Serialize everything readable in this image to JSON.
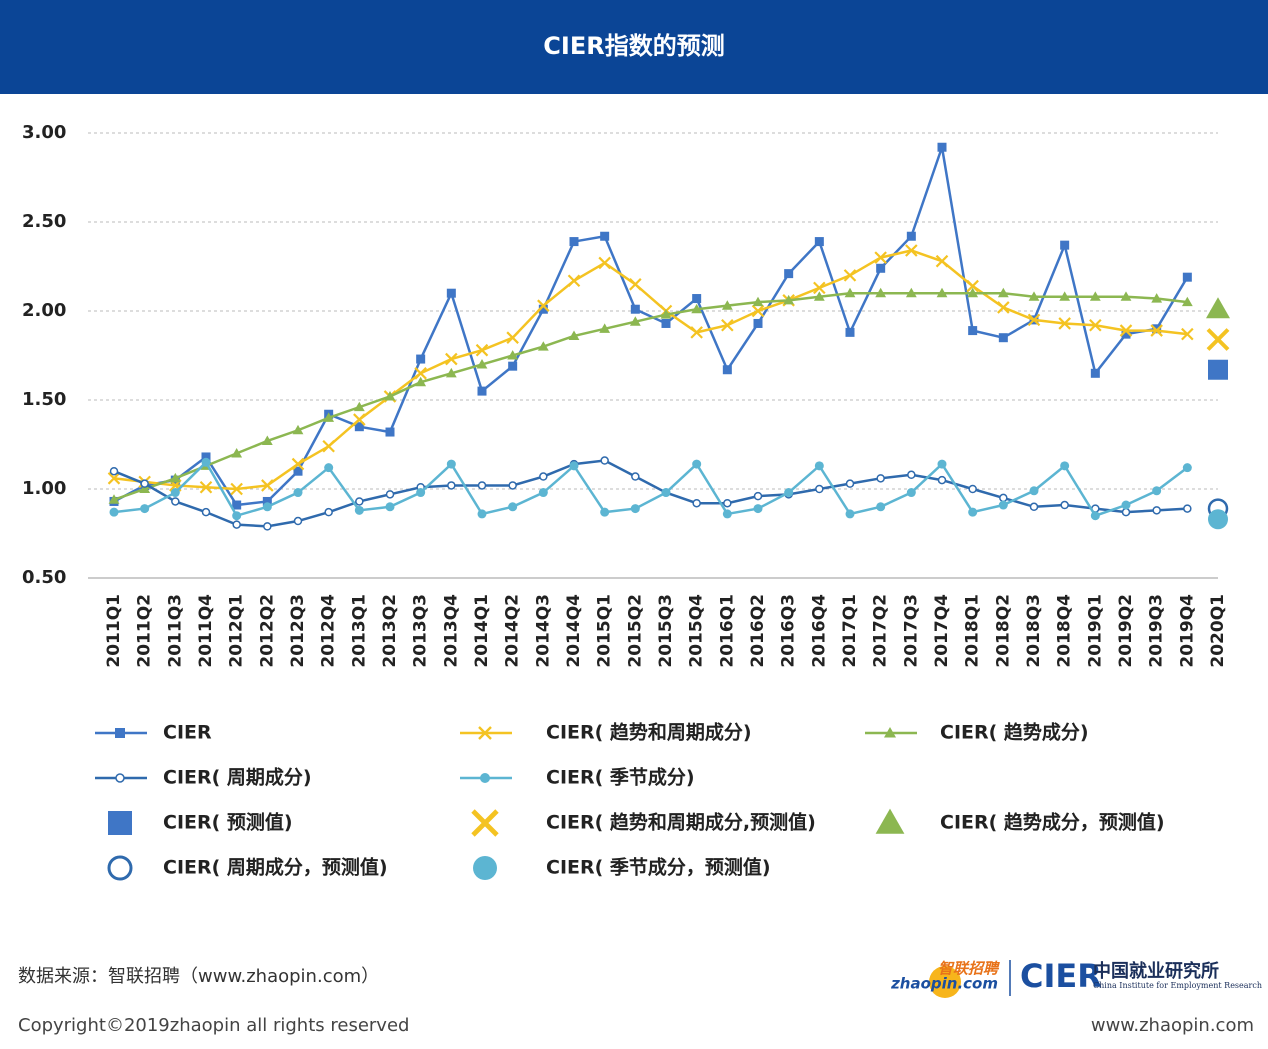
{
  "chart_data": {
    "type": "line",
    "title": "CIER指数的预测",
    "categories": [
      "2011Q1",
      "2011Q2",
      "2011Q3",
      "2011Q4",
      "2012Q1",
      "2012Q2",
      "2012Q3",
      "2012Q4",
      "2013Q1",
      "2013Q2",
      "2013Q3",
      "2013Q4",
      "2014Q1",
      "2014Q2",
      "2014Q3",
      "2014Q4",
      "2015Q1",
      "2015Q2",
      "2015Q3",
      "2015Q4",
      "2016Q1",
      "2016Q2",
      "2016Q3",
      "2016Q4",
      "2017Q1",
      "2017Q2",
      "2017Q3",
      "2017Q4",
      "2018Q1",
      "2018Q2",
      "2018Q3",
      "2018Q4",
      "2019Q1",
      "2019Q2",
      "2019Q3",
      "2019Q4",
      "2020Q1"
    ],
    "ylim": [
      0.5,
      3.0
    ],
    "yticks": [
      {
        "value": 0.5,
        "label": "0.50"
      },
      {
        "value": 1,
        "label": "1.00"
      },
      {
        "value": 1.5,
        "label": "1.50"
      },
      {
        "value": 2,
        "label": "2.00"
      },
      {
        "value": 2.5,
        "label": "2.50"
      },
      {
        "value": 3,
        "label": "3.00"
      }
    ],
    "grid": true,
    "series": [
      {
        "name": "CIER",
        "color": "#3f76c6",
        "marker": "square",
        "line": true,
        "values": [
          0.93,
          1.02,
          1.05,
          1.18,
          0.91,
          0.93,
          1.1,
          1.42,
          1.35,
          1.32,
          1.73,
          2.1,
          1.55,
          1.69,
          2.01,
          2.39,
          2.42,
          2.01,
          1.93,
          2.07,
          1.67,
          1.93,
          2.21,
          2.39,
          1.88,
          2.24,
          2.42,
          2.92,
          1.89,
          1.85,
          1.95,
          2.37,
          1.65,
          1.87,
          1.9,
          2.19,
          null
        ]
      },
      {
        "name": "CIER( 趋势和周期成分)",
        "color": "#f4c322",
        "marker": "x",
        "line": true,
        "values": [
          1.06,
          1.04,
          1.02,
          1.01,
          1.0,
          1.02,
          1.14,
          1.24,
          1.39,
          1.52,
          1.65,
          1.73,
          1.78,
          1.85,
          2.03,
          2.17,
          2.27,
          2.15,
          2.0,
          1.88,
          1.92,
          2.0,
          2.06,
          2.13,
          2.2,
          2.3,
          2.34,
          2.28,
          2.14,
          2.02,
          1.95,
          1.93,
          1.92,
          1.89,
          1.89,
          1.87,
          null
        ]
      },
      {
        "name": "CIER( 趋势成分)",
        "color": "#8cb751",
        "marker": "triangle",
        "line": true,
        "values": [
          0.94,
          1.0,
          1.06,
          1.13,
          1.2,
          1.27,
          1.33,
          1.4,
          1.46,
          1.52,
          1.6,
          1.65,
          1.7,
          1.75,
          1.8,
          1.86,
          1.9,
          1.94,
          1.98,
          2.01,
          2.03,
          2.05,
          2.06,
          2.08,
          2.1,
          2.1,
          2.1,
          2.1,
          2.1,
          2.1,
          2.08,
          2.08,
          2.08,
          2.08,
          2.07,
          2.05,
          null
        ]
      },
      {
        "name": "CIER( 周期成分)",
        "color": "#2f6aad",
        "marker": "circle-open",
        "line": true,
        "values": [
          1.1,
          1.03,
          0.93,
          0.87,
          0.8,
          0.79,
          0.82,
          0.87,
          0.93,
          0.97,
          1.01,
          1.02,
          1.02,
          1.02,
          1.07,
          1.14,
          1.16,
          1.07,
          0.98,
          0.92,
          0.92,
          0.96,
          0.97,
          1.0,
          1.03,
          1.06,
          1.08,
          1.05,
          1.0,
          0.95,
          0.9,
          0.91,
          0.89,
          0.87,
          0.88,
          0.89,
          null
        ]
      },
      {
        "name": "CIER( 季节成分)",
        "color": "#5cb5d2",
        "marker": "circle",
        "line": true,
        "values": [
          0.87,
          0.89,
          0.98,
          1.15,
          0.85,
          0.9,
          0.98,
          1.12,
          0.88,
          0.9,
          0.98,
          1.14,
          0.86,
          0.9,
          0.98,
          1.13,
          0.87,
          0.89,
          0.98,
          1.14,
          0.86,
          0.89,
          0.98,
          1.13,
          0.86,
          0.9,
          0.98,
          1.14,
          0.87,
          0.91,
          0.99,
          1.13,
          0.85,
          0.91,
          0.99,
          1.12,
          null
        ]
      },
      {
        "name": "CIER( 预测值)",
        "color": "#3f76c6",
        "marker": "square",
        "line": false,
        "values": [
          null,
          null,
          null,
          null,
          null,
          null,
          null,
          null,
          null,
          null,
          null,
          null,
          null,
          null,
          null,
          null,
          null,
          null,
          null,
          null,
          null,
          null,
          null,
          null,
          null,
          null,
          null,
          null,
          null,
          null,
          null,
          null,
          null,
          null,
          null,
          null,
          1.67
        ]
      },
      {
        "name": "CIER( 趋势和周期成分,预测值)",
        "color": "#f4c322",
        "marker": "x",
        "line": false,
        "values": [
          null,
          null,
          null,
          null,
          null,
          null,
          null,
          null,
          null,
          null,
          null,
          null,
          null,
          null,
          null,
          null,
          null,
          null,
          null,
          null,
          null,
          null,
          null,
          null,
          null,
          null,
          null,
          null,
          null,
          null,
          null,
          null,
          null,
          null,
          null,
          null,
          1.84
        ]
      },
      {
        "name": "CIER( 趋势成分，预测值)",
        "color": "#8cb751",
        "marker": "triangle",
        "line": false,
        "values": [
          null,
          null,
          null,
          null,
          null,
          null,
          null,
          null,
          null,
          null,
          null,
          null,
          null,
          null,
          null,
          null,
          null,
          null,
          null,
          null,
          null,
          null,
          null,
          null,
          null,
          null,
          null,
          null,
          null,
          null,
          null,
          null,
          null,
          null,
          null,
          null,
          2.01
        ]
      },
      {
        "name": "CIER( 周期成分，预测值)",
        "color": "#2f6aad",
        "marker": "circle-open",
        "line": false,
        "values": [
          null,
          null,
          null,
          null,
          null,
          null,
          null,
          null,
          null,
          null,
          null,
          null,
          null,
          null,
          null,
          null,
          null,
          null,
          null,
          null,
          null,
          null,
          null,
          null,
          null,
          null,
          null,
          null,
          null,
          null,
          null,
          null,
          null,
          null,
          null,
          null,
          0.89
        ]
      },
      {
        "name": "CIER( 季节成分，预测值)",
        "color": "#5cb5d2",
        "marker": "circle",
        "line": false,
        "values": [
          null,
          null,
          null,
          null,
          null,
          null,
          null,
          null,
          null,
          null,
          null,
          null,
          null,
          null,
          null,
          null,
          null,
          null,
          null,
          null,
          null,
          null,
          null,
          null,
          null,
          null,
          null,
          null,
          null,
          null,
          null,
          null,
          null,
          null,
          null,
          null,
          0.83
        ]
      }
    ]
  },
  "footer": {
    "source": "数据来源：智联招聘（www.zhaopin.com）",
    "copyright": "Copyright©2019zhaopin all rights reserved",
    "url": "www.zhaopin.com",
    "logo_zhaopin_cn": "智联招聘",
    "logo_zhaopin_en": "zhaopin.com",
    "logo_cier": "CIER",
    "logo_cier_cn": "中国就业研究所",
    "logo_cier_en": "China Institute for Employment Research"
  }
}
